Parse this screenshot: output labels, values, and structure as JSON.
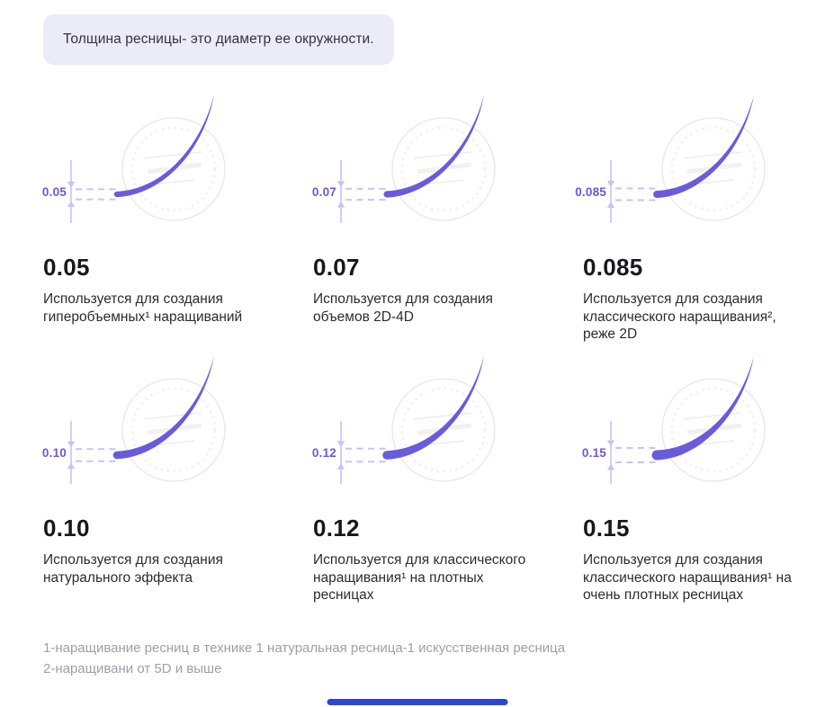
{
  "header": {
    "note": "Толщина ресницы- это диаметр ее окружности."
  },
  "items": [
    {
      "value": "0.05",
      "description": "Используется для создания гиперобъемных¹ наращиваний"
    },
    {
      "value": "0.07",
      "description": "Используется для создания объемов 2D-4D"
    },
    {
      "value": "0.085",
      "description": "Используется для создания классического наращивания², реже 2D"
    },
    {
      "value": "0.10",
      "description": "Используется для создания натурального эффекта"
    },
    {
      "value": "0.12",
      "description": "Используется для классического наращивания¹ на плотных ресницах"
    },
    {
      "value": "0.15",
      "description": "Используется для создания классического наращивания¹ на очень плотных ресницах"
    }
  ],
  "footnotes": [
    "1-наращивание ресниц в технике 1 натуральная ресница-1 искусственная ресница",
    "2-наращивани от 5D и выше"
  ],
  "colors": {
    "lash": "#6A5BDD",
    "measure_lines": "#C9C3F1",
    "value_label": "#6A58DB",
    "note_background": "#ECEBF8",
    "heading_text": "#17171F",
    "body_text": "#2B2B33",
    "footnote_text": "#9BA0A9",
    "watermark": "#E7E3DB",
    "bottom_bar": "#2B46D6"
  }
}
